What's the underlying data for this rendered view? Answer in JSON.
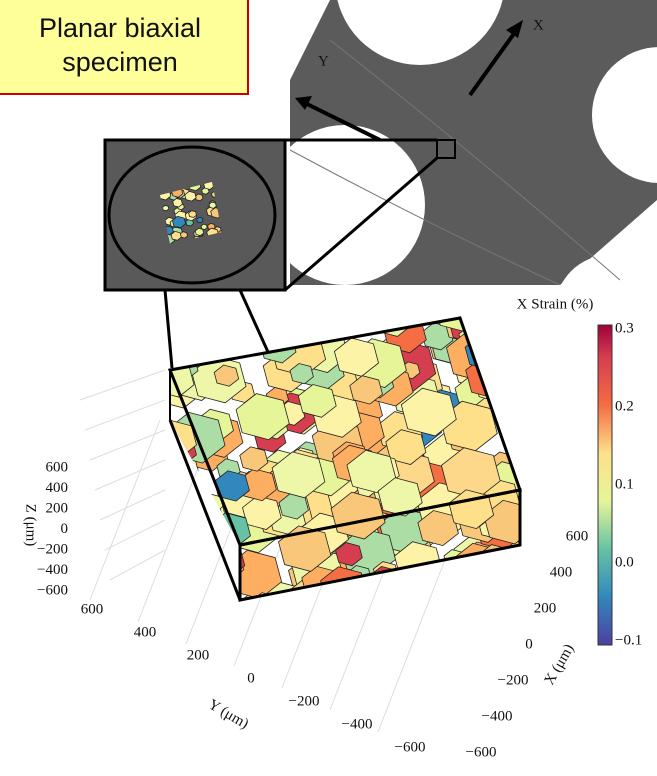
{
  "callout": {
    "lines": [
      "Planar biaxial",
      "specimen"
    ]
  },
  "specimen": {
    "x_axis": "X",
    "y_axis": "Y"
  },
  "colorbar": {
    "title": "X Strain (%)",
    "ticks": [
      "0.3",
      "0.2",
      "0.1",
      "0.0",
      "−0.1"
    ]
  },
  "plot": {
    "z_axis": {
      "label": "Z (μm)",
      "ticks": [
        "600",
        "400",
        "200",
        "0",
        "−200",
        "−400",
        "−600"
      ]
    },
    "y_axis": {
      "label": "Y (μm)",
      "ticks": [
        "600",
        "400",
        "200",
        "0",
        "−200",
        "−400",
        "−600"
      ]
    },
    "x_axis": {
      "label": "X (μm)",
      "ticks": [
        "600",
        "400",
        "200",
        "0",
        "−200",
        "−400",
        "−600"
      ]
    }
  }
}
